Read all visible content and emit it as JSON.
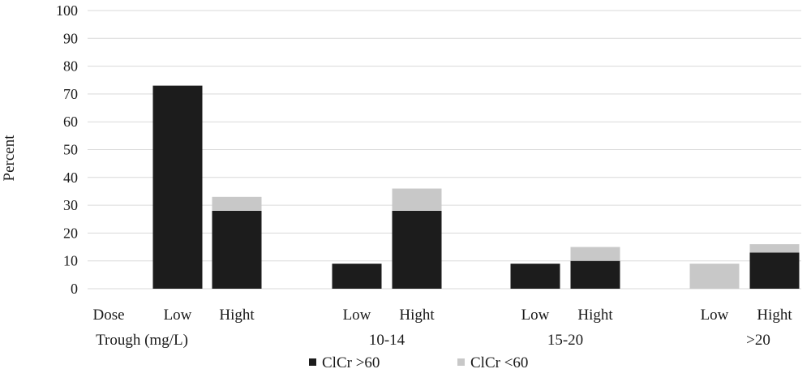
{
  "chart_data": {
    "type": "bar",
    "stacked": true,
    "ylabel": "Percent",
    "ylim": [
      0,
      100
    ],
    "yticks": [
      0,
      10,
      20,
      30,
      40,
      50,
      60,
      70,
      80,
      90,
      100
    ],
    "grid": true,
    "legend_position": "bottom",
    "groups": [
      {
        "label": "Trough (mg/L)",
        "header": "Dose",
        "categories": [
          "Low",
          "Hight"
        ]
      },
      {
        "label": "10-14",
        "categories": [
          "Low",
          "Hight"
        ]
      },
      {
        "label": "15-20",
        "categories": [
          "Low",
          "Hight"
        ]
      },
      {
        "label": ">20",
        "categories": [
          "Low",
          "Hight"
        ]
      }
    ],
    "series": [
      {
        "name": "ClCr >60",
        "color": "#1c1c1c",
        "values": [
          73,
          28,
          9,
          28,
          9,
          10,
          0,
          13
        ]
      },
      {
        "name": "ClCr <60",
        "color": "#c8c8c8",
        "values": [
          0,
          5,
          0,
          8,
          0,
          5,
          9,
          3
        ]
      }
    ]
  }
}
